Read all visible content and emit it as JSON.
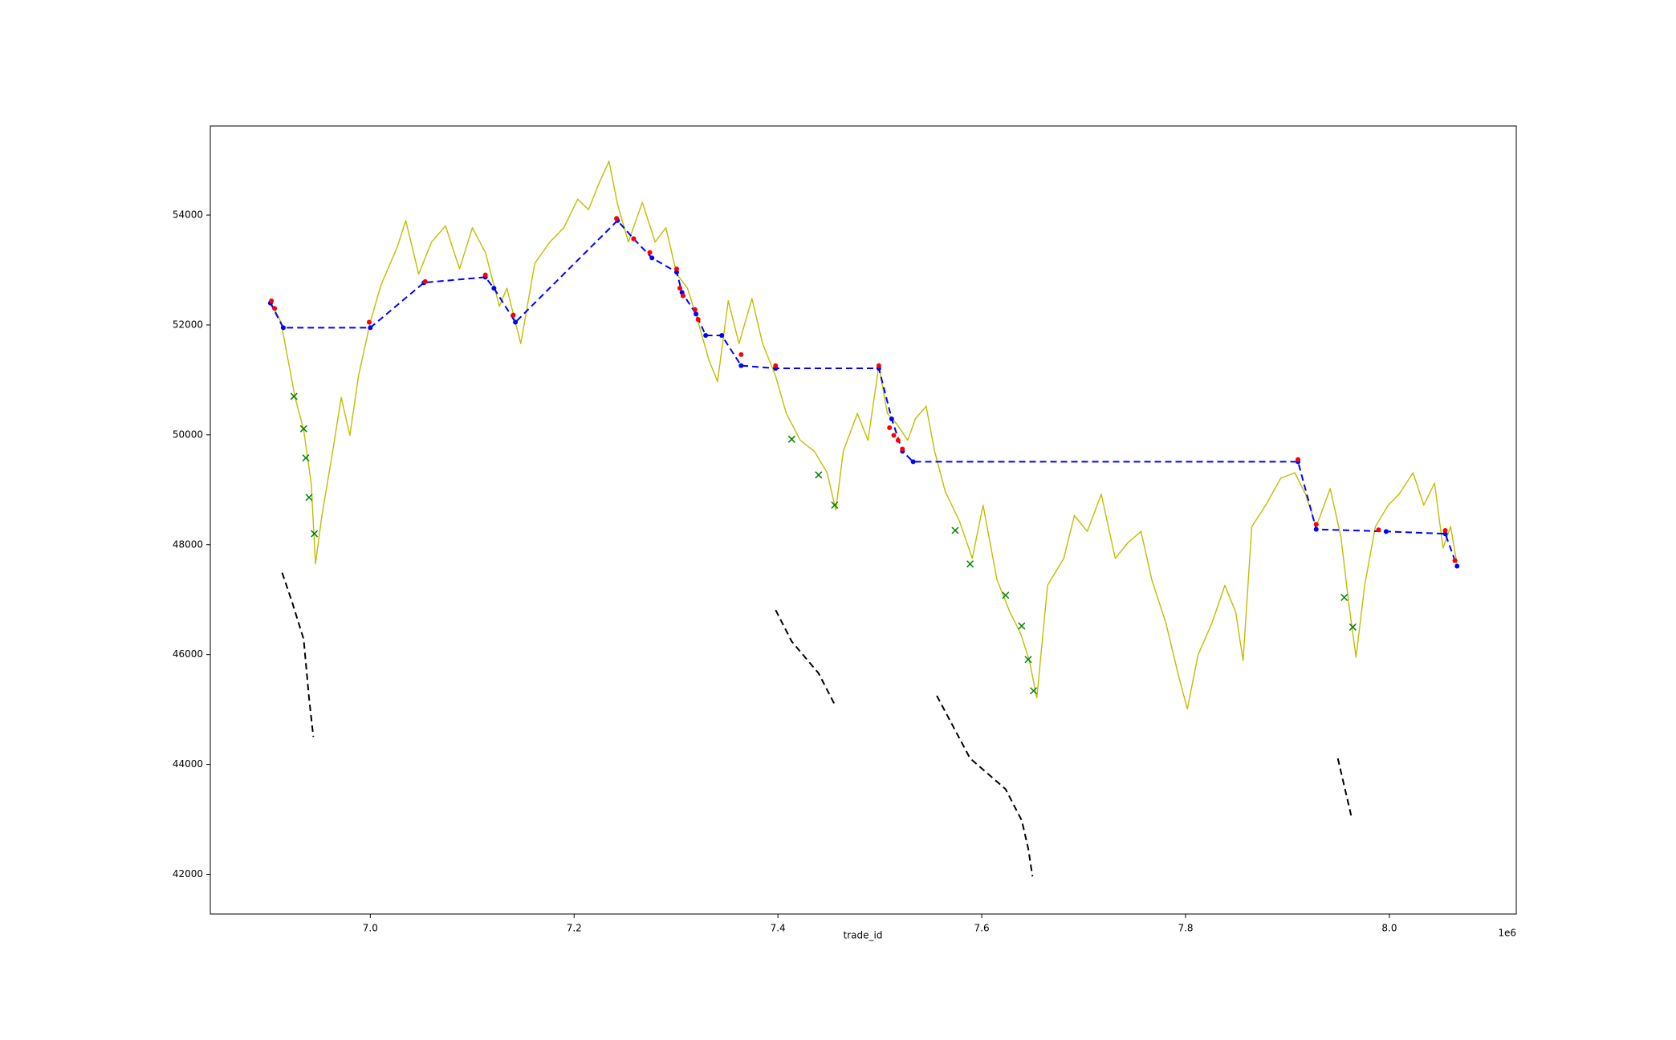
{
  "chart_data": {
    "type": "line",
    "xlabel": "trade_id",
    "x_offset_label": "1e6",
    "xlim": [
      6843000,
      8124500
    ],
    "ylim": [
      41277,
      55622
    ],
    "xticks": [
      {
        "value": 7000000,
        "label": "7.0"
      },
      {
        "value": 7200000,
        "label": "7.2"
      },
      {
        "value": 7400000,
        "label": "7.4"
      },
      {
        "value": 7600000,
        "label": "7.6"
      },
      {
        "value": 7800000,
        "label": "7.8"
      },
      {
        "value": 8000000,
        "label": "8.0"
      }
    ],
    "yticks": [
      42000,
      44000,
      46000,
      48000,
      50000,
      52000,
      54000
    ],
    "series": [
      {
        "color": "#bfbf00",
        "linestyle": "solid",
        "x": [
          6902000,
          6912400,
          6926200,
          6934600,
          6942000,
          6946200,
          6952500,
          6963100,
          6971500,
          6980000,
          6988400,
          7000000,
          7010500,
          7026400,
          7034800,
          7047500,
          7060100,
          7073800,
          7087600,
          7100200,
          7112900,
          7126600,
          7134000,
          7147700,
          7161400,
          7176200,
          7189900,
          7203600,
          7214100,
          7224700,
          7234200,
          7242600,
          7253200,
          7266900,
          7279500,
          7290100,
          7300600,
          7311200,
          7321700,
          7332300,
          7340700,
          7351300,
          7361800,
          7374500,
          7385000,
          7397700,
          7408200,
          7421900,
          7435700,
          7448300,
          7456800,
          7464100,
          7477900,
          7488400,
          7499000,
          7507400,
          7516900,
          7527400,
          7534800,
          7545400,
          7553800,
          7564300,
          7578100,
          7590700,
          7601300,
          7615000,
          7627700,
          7638200,
          7646700,
          7654000,
          7664600,
          7680400,
          7690900,
          7703600,
          7717300,
          7731000,
          7743700,
          7756300,
          7766900,
          7780600,
          7793300,
          7801700,
          7812200,
          7826000,
          7838600,
          7849200,
          7856500,
          7865000,
          7878700,
          7893400,
          7907100,
          7917700,
          7928200,
          7941900,
          7952500,
          7959900,
          7967300,
          7975700,
          7986300,
          7998900,
          8009500,
          8023200,
          8033800,
          8044300,
          8052700,
          8060100,
          8066400
        ],
        "values": [
          52440,
          52050,
          50680,
          50090,
          49120,
          47650,
          48530,
          49700,
          50680,
          49990,
          51070,
          52050,
          52730,
          53414,
          53900,
          52925,
          53510,
          53805,
          53020,
          53770,
          53320,
          52340,
          52670,
          51660,
          53120,
          53510,
          53770,
          54290,
          54100,
          54590,
          54980,
          54200,
          53510,
          54230,
          53510,
          53770,
          52930,
          52670,
          52050,
          51360,
          50970,
          52440,
          51660,
          52480,
          51660,
          51070,
          50390,
          49900,
          49700,
          49310,
          48630,
          49701,
          50390,
          49900,
          51260,
          50390,
          50190,
          49900,
          50290,
          50520,
          49700,
          48960,
          48430,
          47750,
          48720,
          47360,
          46770,
          46380,
          45890,
          45210,
          47260,
          47750,
          48530,
          48240,
          48920,
          47750,
          48040,
          48240,
          47360,
          46580,
          45600,
          45010,
          45990,
          46580,
          47260,
          46770,
          45890,
          48330,
          48720,
          49210,
          49310,
          48920,
          48330,
          49020,
          48140,
          46970,
          45950,
          47260,
          48330,
          48720,
          48920,
          49310,
          48720,
          49120,
          47940,
          48330,
          47650
        ]
      },
      {
        "color": "#0000ff",
        "linestyle": "dashed",
        "marker": "dot",
        "x": [
          6902000,
          6914600,
          7000000,
          7052700,
          7112900,
          7121300,
          7142400,
          7242600,
          7258400,
          7276400,
          7300600,
          7305900,
          7319600,
          7329100,
          7344900,
          7363900,
          7397700,
          7499000,
          7511600,
          7522200,
          7532700,
          7910300,
          7928200,
          7996800,
          8054800,
          8066400
        ],
        "values": [
          52400,
          51950,
          51950,
          52770,
          52870,
          52670,
          52050,
          53900,
          53570,
          53220,
          52960,
          52590,
          52200,
          51810,
          51810,
          51260,
          51210,
          51210,
          50290,
          49700,
          49510,
          49510,
          48280,
          48240,
          48200,
          47610
        ]
      },
      {
        "color": "#ff0000",
        "marker": "dot",
        "x": [
          6903000,
          6906100,
          6998900,
          7053800,
          7112900,
          7140300,
          7241600,
          7258400,
          7274300,
          7300600,
          7303800,
          7306900,
          7318600,
          7321700,
          7363900,
          7397700,
          7499000,
          7509500,
          7513700,
          7517900,
          7522200,
          7910300,
          7928200,
          7989400,
          8054800,
          8064300
        ],
        "values": [
          52440,
          52300,
          52050,
          52790,
          52910,
          52180,
          53940,
          53570,
          53320,
          53020,
          52670,
          52530,
          52280,
          52100,
          51460,
          51260,
          51260,
          50130,
          49990,
          49900,
          49740,
          49550,
          48370,
          48270,
          48260,
          47710
        ]
      },
      {
        "color": "#008000",
        "marker": "x",
        "x": [
          6925100,
          6934600,
          6936700,
          6939900,
          6945100,
          7413500,
          7439900,
          7455700,
          7573900,
          7588600,
          7623400,
          7639200,
          7645600,
          7650800,
          7955700,
          7964100
        ],
        "values": [
          50700,
          50110,
          49580,
          48860,
          48200,
          49920,
          49270,
          48720,
          48260,
          47650,
          47080,
          46520,
          45910,
          45340,
          47040,
          46500
        ]
      },
      {
        "color": "#000000",
        "linestyle": "dashed",
        "x": [
          6913500,
          6923000,
          6934600,
          6939900,
          6944100,
          null,
          7397700,
          7413500,
          7439900,
          7455700,
          null,
          7555900,
          7588600,
          7623400,
          7639200,
          7645600,
          7649800,
          null,
          7949400,
          7963100
        ],
        "values": [
          47490,
          46970,
          46280,
          45210,
          44500,
          null,
          46810,
          46240,
          45660,
          45090,
          null,
          45250,
          44110,
          43550,
          42980,
          42470,
          41960,
          null,
          44110,
          43020
        ]
      }
    ]
  }
}
